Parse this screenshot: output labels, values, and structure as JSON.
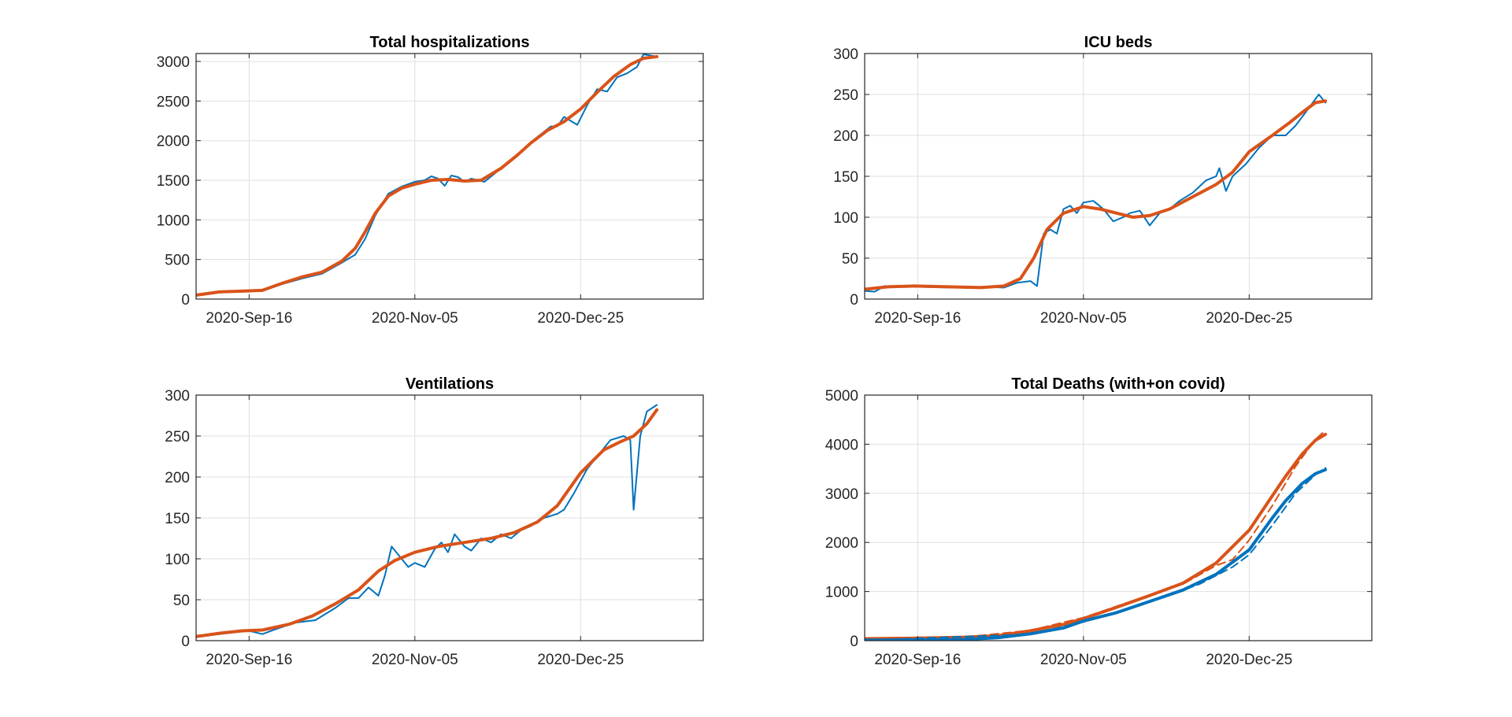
{
  "chart_data": [
    {
      "type": "line",
      "title": "Total hospitalizations",
      "xlabel": "",
      "ylabel": "",
      "xlim": [
        "2020-08-31",
        "2021-01-31"
      ],
      "ylim": [
        0,
        3100
      ],
      "yticks": [
        0,
        500,
        1000,
        1500,
        2000,
        2500,
        3000
      ],
      "xticks": [
        "2020-Sep-16",
        "2020-Nov-05",
        "2020-Dec-25"
      ],
      "grid": true,
      "series": [
        {
          "color": "#0072BD",
          "line_style": "solid",
          "line_weight": "thin",
          "x": [
            "2020-08-31",
            "2020-09-07",
            "2020-09-14",
            "2020-09-20",
            "2020-09-26",
            "2020-10-02",
            "2020-10-08",
            "2020-10-14",
            "2020-10-18",
            "2020-10-21",
            "2020-10-24",
            "2020-10-28",
            "2020-11-01",
            "2020-11-05",
            "2020-11-08",
            "2020-11-10",
            "2020-11-12",
            "2020-11-14",
            "2020-11-16",
            "2020-11-18",
            "2020-11-20",
            "2020-11-22",
            "2020-11-24",
            "2020-11-26",
            "2020-12-01",
            "2020-12-06",
            "2020-12-10",
            "2020-12-13",
            "2020-12-16",
            "2020-12-18",
            "2020-12-20",
            "2020-12-24",
            "2020-12-27",
            "2020-12-30",
            "2021-01-02",
            "2021-01-05",
            "2021-01-08",
            "2021-01-11",
            "2021-01-13",
            "2021-01-17"
          ],
          "y": [
            60,
            95,
            100,
            105,
            190,
            260,
            320,
            460,
            560,
            760,
            1050,
            1330,
            1420,
            1480,
            1500,
            1550,
            1520,
            1430,
            1560,
            1540,
            1480,
            1520,
            1500,
            1480,
            1650,
            1820,
            1980,
            2080,
            2180,
            2180,
            2300,
            2200,
            2450,
            2650,
            2620,
            2800,
            2850,
            2930,
            3090,
            3060
          ]
        },
        {
          "color": "#D95319",
          "line_style": "solid",
          "line_weight": "thick",
          "x": [
            "2020-08-31",
            "2020-09-07",
            "2020-09-14",
            "2020-09-20",
            "2020-09-26",
            "2020-10-02",
            "2020-10-08",
            "2020-10-14",
            "2020-10-18",
            "2020-10-21",
            "2020-10-24",
            "2020-10-28",
            "2020-11-01",
            "2020-11-05",
            "2020-11-10",
            "2020-11-15",
            "2020-11-20",
            "2020-11-25",
            "2020-12-01",
            "2020-12-06",
            "2020-12-10",
            "2020-12-15",
            "2020-12-20",
            "2020-12-25",
            "2020-12-30",
            "2021-01-04",
            "2021-01-09",
            "2021-01-13",
            "2021-01-17"
          ],
          "y": [
            50,
            90,
            100,
            110,
            200,
            280,
            340,
            480,
            640,
            850,
            1080,
            1300,
            1400,
            1450,
            1500,
            1510,
            1490,
            1500,
            1650,
            1820,
            1970,
            2130,
            2240,
            2400,
            2610,
            2810,
            2960,
            3040,
            3060
          ]
        }
      ]
    },
    {
      "type": "line",
      "title": "ICU beds",
      "xlabel": "",
      "ylabel": "",
      "xlim": [
        "2020-08-31",
        "2021-01-31"
      ],
      "ylim": [
        0,
        300
      ],
      "yticks": [
        0,
        50,
        100,
        150,
        200,
        250,
        300
      ],
      "xticks": [
        "2020-Sep-16",
        "2020-Nov-05",
        "2020-Dec-25"
      ],
      "grid": true,
      "series": [
        {
          "color": "#0072BD",
          "line_style": "solid",
          "line_weight": "thin",
          "x": [
            "2020-08-31",
            "2020-09-03",
            "2020-09-06",
            "2020-09-10",
            "2020-09-16",
            "2020-09-26",
            "2020-10-06",
            "2020-10-12",
            "2020-10-16",
            "2020-10-20",
            "2020-10-22",
            "2020-10-24",
            "2020-10-26",
            "2020-10-28",
            "2020-10-30",
            "2020-11-01",
            "2020-11-03",
            "2020-11-05",
            "2020-11-08",
            "2020-11-11",
            "2020-11-14",
            "2020-11-17",
            "2020-11-19",
            "2020-11-22",
            "2020-11-25",
            "2020-11-28",
            "2020-12-01",
            "2020-12-04",
            "2020-12-08",
            "2020-12-12",
            "2020-12-15",
            "2020-12-16",
            "2020-12-18",
            "2020-12-20",
            "2020-12-24",
            "2020-12-28",
            "2021-01-01",
            "2021-01-05",
            "2021-01-08",
            "2021-01-11",
            "2021-01-15",
            "2021-01-17"
          ],
          "y": [
            10,
            9,
            16,
            15,
            15,
            14,
            15,
            14,
            20,
            22,
            16,
            80,
            85,
            80,
            110,
            114,
            105,
            118,
            120,
            110,
            95,
            100,
            105,
            108,
            90,
            105,
            110,
            120,
            130,
            145,
            150,
            160,
            132,
            150,
            165,
            185,
            200,
            200,
            212,
            228,
            250,
            240
          ]
        },
        {
          "color": "#D95319",
          "line_style": "solid",
          "line_weight": "thick",
          "x": [
            "2020-08-31",
            "2020-09-07",
            "2020-09-15",
            "2020-09-25",
            "2020-10-05",
            "2020-10-12",
            "2020-10-17",
            "2020-10-21",
            "2020-10-25",
            "2020-10-30",
            "2020-11-05",
            "2020-11-10",
            "2020-11-15",
            "2020-11-20",
            "2020-11-25",
            "2020-12-01",
            "2020-12-08",
            "2020-12-15",
            "2020-12-20",
            "2020-12-25",
            "2021-01-01",
            "2021-01-06",
            "2021-01-10",
            "2021-01-14",
            "2021-01-17"
          ],
          "y": [
            12,
            15,
            16,
            15,
            14,
            16,
            25,
            50,
            85,
            105,
            113,
            110,
            105,
            100,
            102,
            110,
            125,
            140,
            155,
            180,
            200,
            215,
            228,
            240,
            242
          ]
        }
      ]
    },
    {
      "type": "line",
      "title": "Ventilations",
      "xlabel": "",
      "ylabel": "",
      "xlim": [
        "2020-08-31",
        "2021-01-31"
      ],
      "ylim": [
        0,
        300
      ],
      "yticks": [
        0,
        50,
        100,
        150,
        200,
        250,
        300
      ],
      "xticks": [
        "2020-Sep-16",
        "2020-Nov-05",
        "2020-Dec-25"
      ],
      "grid": true,
      "series": [
        {
          "color": "#0072BD",
          "line_style": "solid",
          "line_weight": "thin",
          "x": [
            "2020-08-31",
            "2020-09-07",
            "2020-09-14",
            "2020-09-16",
            "2020-09-20",
            "2020-09-24",
            "2020-09-30",
            "2020-10-06",
            "2020-10-12",
            "2020-10-16",
            "2020-10-19",
            "2020-10-22",
            "2020-10-25",
            "2020-10-27",
            "2020-10-29",
            "2020-11-01",
            "2020-11-03",
            "2020-11-05",
            "2020-11-08",
            "2020-11-11",
            "2020-11-13",
            "2020-11-15",
            "2020-11-17",
            "2020-11-20",
            "2020-11-22",
            "2020-11-25",
            "2020-11-28",
            "2020-12-01",
            "2020-12-04",
            "2020-12-07",
            "2020-12-10",
            "2020-12-14",
            "2020-12-18",
            "2020-12-20",
            "2020-12-23",
            "2020-12-27",
            "2020-12-31",
            "2021-01-03",
            "2021-01-07",
            "2021-01-09",
            "2021-01-10",
            "2021-01-12",
            "2021-01-14",
            "2021-01-17"
          ],
          "y": [
            5,
            8,
            12,
            12,
            8,
            14,
            22,
            25,
            40,
            52,
            52,
            65,
            55,
            80,
            115,
            100,
            90,
            95,
            90,
            112,
            120,
            108,
            130,
            115,
            110,
            125,
            120,
            130,
            125,
            135,
            140,
            150,
            155,
            160,
            180,
            210,
            230,
            245,
            250,
            245,
            160,
            250,
            280,
            288
          ]
        },
        {
          "color": "#D95319",
          "line_style": "solid",
          "line_weight": "thick",
          "x": [
            "2020-08-31",
            "2020-09-07",
            "2020-09-14",
            "2020-09-20",
            "2020-09-28",
            "2020-10-05",
            "2020-10-12",
            "2020-10-19",
            "2020-10-25",
            "2020-10-30",
            "2020-11-05",
            "2020-11-12",
            "2020-11-20",
            "2020-11-28",
            "2020-12-05",
            "2020-12-12",
            "2020-12-18",
            "2020-12-25",
            "2021-01-01",
            "2021-01-06",
            "2021-01-10",
            "2021-01-14",
            "2021-01-17"
          ],
          "y": [
            5,
            9,
            12,
            13,
            20,
            30,
            45,
            62,
            85,
            98,
            108,
            115,
            120,
            125,
            132,
            145,
            165,
            205,
            233,
            243,
            250,
            265,
            282
          ]
        }
      ]
    },
    {
      "type": "line",
      "title": "Total Deaths (with+on covid)",
      "xlabel": "",
      "ylabel": "",
      "xlim": [
        "2020-08-31",
        "2021-01-31"
      ],
      "ylim": [
        0,
        5000
      ],
      "yticks": [
        0,
        1000,
        2000,
        3000,
        4000,
        5000
      ],
      "xticks": [
        "2020-Sep-16",
        "2020-Nov-05",
        "2020-Dec-25"
      ],
      "grid": true,
      "series": [
        {
          "color": "#D95319",
          "line_style": "solid",
          "line_weight": "thick",
          "x": [
            "2020-08-31",
            "2020-09-15",
            "2020-09-30",
            "2020-10-10",
            "2020-10-20",
            "2020-10-30",
            "2020-11-05",
            "2020-11-15",
            "2020-11-25",
            "2020-12-05",
            "2020-12-15",
            "2020-12-25",
            "2021-01-01",
            "2021-01-05",
            "2021-01-10",
            "2021-01-14",
            "2021-01-17"
          ],
          "y": [
            40,
            50,
            70,
            100,
            200,
            330,
            450,
            680,
            920,
            1170,
            1580,
            2250,
            2950,
            3350,
            3800,
            4080,
            4200
          ]
        },
        {
          "color": "#D95319",
          "line_style": "dashed",
          "line_weight": "thin",
          "x": [
            "2020-08-31",
            "2020-09-30",
            "2020-10-20",
            "2020-11-05",
            "2020-11-25",
            "2020-12-05",
            "2020-12-15",
            "2020-12-20",
            "2020-12-25",
            "2021-01-01",
            "2021-01-08",
            "2021-01-14",
            "2021-01-17"
          ],
          "y": [
            40,
            70,
            210,
            470,
            930,
            1150,
            1530,
            1650,
            2050,
            2750,
            3550,
            4100,
            4280
          ]
        },
        {
          "color": "#0072BD",
          "line_style": "solid",
          "line_weight": "thick",
          "x": [
            "2020-08-31",
            "2020-09-15",
            "2020-09-30",
            "2020-10-10",
            "2020-10-20",
            "2020-10-30",
            "2020-11-05",
            "2020-11-15",
            "2020-11-25",
            "2020-12-05",
            "2020-12-15",
            "2020-12-25",
            "2021-01-01",
            "2021-01-05",
            "2021-01-10",
            "2021-01-14",
            "2021-01-17"
          ],
          "y": [
            10,
            15,
            25,
            60,
            140,
            260,
            400,
            570,
            800,
            1030,
            1350,
            1850,
            2500,
            2850,
            3200,
            3400,
            3480
          ]
        },
        {
          "color": "#0072BD",
          "line_style": "dashed",
          "line_weight": "thin",
          "x": [
            "2020-08-31",
            "2020-10-20",
            "2020-11-05",
            "2020-11-25",
            "2020-12-10",
            "2020-12-20",
            "2020-12-25",
            "2021-01-01",
            "2021-01-08",
            "2021-01-14",
            "2021-01-17"
          ],
          "y": [
            10,
            130,
            380,
            790,
            1150,
            1500,
            1750,
            2350,
            3000,
            3380,
            3520
          ]
        }
      ]
    }
  ]
}
